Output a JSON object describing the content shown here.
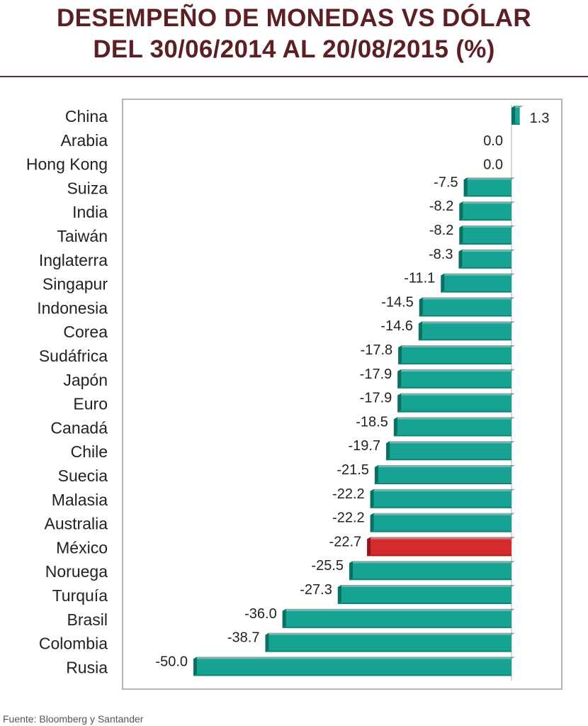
{
  "title": {
    "line1": "DESEMPEÑO DE MONEDAS VS DÓLAR",
    "line2": "DEL 30/06/2014 AL 20/08/2015 (%)"
  },
  "source": "Fuente: Bloomberg y Santander",
  "colors": {
    "title": "#5c1f24",
    "bar": "#16a393",
    "bar_dark": "#0b6f63",
    "highlight": "#d42b2b",
    "highlight_dark": "#8e1717"
  },
  "chart_data": {
    "type": "bar",
    "orientation": "horizontal",
    "categories": [
      "China",
      "Arabia",
      "Hong Kong",
      "Suiza",
      "India",
      "Taiwán",
      "Inglaterra",
      "Singapur",
      "Indonesia",
      "Corea",
      "Sudáfrica",
      "Japón",
      "Euro",
      "Canadá",
      "Chile",
      "Suecia",
      "Malasia",
      "Australia",
      "México",
      "Noruega",
      "Turquía",
      "Brasil",
      "Colombia",
      "Rusia"
    ],
    "values": [
      1.3,
      0.0,
      0.0,
      -7.5,
      -8.2,
      -8.2,
      -8.3,
      -11.1,
      -14.5,
      -14.6,
      -17.8,
      -17.9,
      -17.9,
      -18.5,
      -19.7,
      -21.5,
      -22.2,
      -22.2,
      -22.7,
      -25.5,
      -27.3,
      -36.0,
      -38.7,
      -50.0
    ],
    "value_labels": [
      "1.3",
      "0.0",
      "0.0",
      "-7.5",
      "-8.2",
      "-8.2",
      "-8.3",
      "-11.1",
      "-14.5",
      "-14.6",
      "-17.8",
      "-17.9",
      "-17.9",
      "-18.5",
      "-19.7",
      "-21.5",
      "-22.2",
      "-22.2",
      "-22.7",
      "-25.5",
      "-27.3",
      "-36.0",
      "-38.7",
      "-50.0"
    ],
    "highlight": "México",
    "xlim": [
      -50,
      1.3
    ],
    "grid": false,
    "legend": "none"
  }
}
